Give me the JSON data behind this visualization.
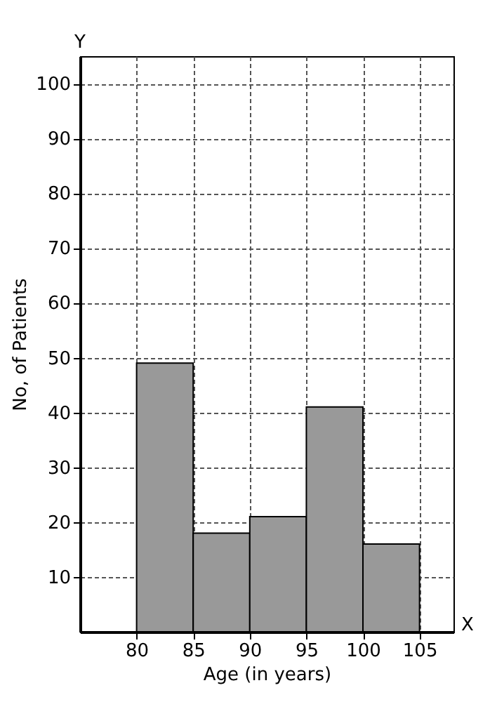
{
  "chart_data": {
    "type": "histogram",
    "xlabel": "Age (in years)",
    "ylabel": "No, of Patients",
    "bins": [
      80,
      85,
      90,
      95,
      100,
      105
    ],
    "values": [
      49,
      18,
      21,
      41,
      16
    ],
    "color": "#999999",
    "xlim": [
      75,
      108
    ],
    "xticks": [
      80,
      85,
      90,
      95,
      100,
      105
    ],
    "ylim": [
      0,
      105
    ],
    "yticks": [
      10,
      20,
      30,
      40,
      50,
      60,
      70,
      80,
      90,
      100
    ],
    "grid": true,
    "annotations": [
      "Y",
      "X"
    ]
  }
}
